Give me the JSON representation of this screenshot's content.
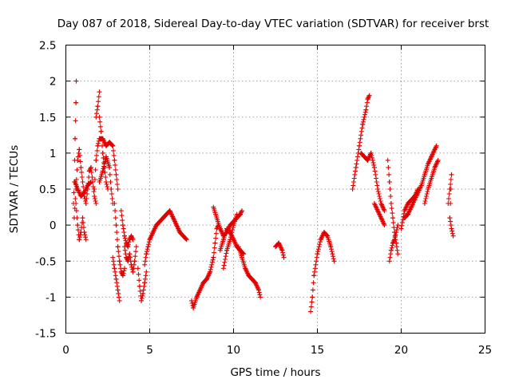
{
  "chart_data": {
    "type": "scatter",
    "title": "Day 087 of 2018, Sidereal Day-to-day VTEC variation (SDTVAR) for receiver brst",
    "xlabel": "GPS time / hours",
    "ylabel": "SDTVAR / TECUs",
    "xlim": [
      0,
      25
    ],
    "ylim": [
      -1.5,
      2.5
    ],
    "xticks": [
      0,
      5,
      10,
      15,
      20,
      25
    ],
    "xtick_labels": [
      "0",
      "5",
      "10",
      "15",
      "20",
      "25"
    ],
    "yticks": [
      -1.5,
      -1,
      -0.5,
      0,
      0.5,
      1,
      1.5,
      2,
      2.5
    ],
    "ytick_labels": [
      "-1.5",
      "-1",
      "-0.5",
      "0",
      "0.5",
      "1",
      "1.5",
      "2",
      "2.5"
    ],
    "grid": true,
    "marker": "+",
    "color": "#e00000",
    "arcs": [
      {
        "name": "arc-a",
        "points": [
          [
            0.45,
            0.3
          ],
          [
            0.5,
            0.6
          ],
          [
            0.55,
            1.2
          ],
          [
            0.6,
            1.7
          ],
          [
            0.62,
            2.0
          ]
        ]
      },
      {
        "name": "arc-b",
        "points": [
          [
            0.5,
            0.1
          ],
          [
            0.6,
            0.5
          ],
          [
            0.7,
            0.9
          ],
          [
            0.8,
            1.05
          ],
          [
            0.9,
            0.8
          ],
          [
            1.0,
            0.6
          ],
          [
            1.1,
            0.4
          ],
          [
            1.2,
            0.3
          ],
          [
            1.3,
            0.5
          ],
          [
            1.4,
            0.75
          ],
          [
            1.5,
            0.8
          ],
          [
            1.6,
            0.6
          ],
          [
            1.7,
            0.4
          ],
          [
            1.8,
            0.3
          ]
        ]
      },
      {
        "name": "arc-c",
        "points": [
          [
            0.6,
            0.3
          ],
          [
            0.7,
            0.0
          ],
          [
            0.8,
            -0.2
          ],
          [
            0.9,
            -0.1
          ],
          [
            1.0,
            0.1
          ],
          [
            1.1,
            -0.1
          ],
          [
            1.2,
            -0.2
          ]
        ]
      },
      {
        "name": "arc-d",
        "points": [
          [
            0.55,
            0.6
          ],
          [
            0.7,
            0.5
          ],
          [
            0.9,
            0.4
          ],
          [
            1.1,
            0.45
          ],
          [
            1.3,
            0.55
          ],
          [
            1.5,
            0.6
          ]
        ]
      },
      {
        "name": "arc-e",
        "points": [
          [
            1.7,
            0.5
          ],
          [
            1.8,
            0.9
          ],
          [
            1.9,
            1.1
          ],
          [
            2.0,
            1.2
          ],
          [
            2.2,
            1.2
          ],
          [
            2.4,
            1.1
          ],
          [
            2.6,
            1.15
          ],
          [
            2.8,
            1.1
          ],
          [
            2.9,
            0.9
          ],
          [
            3.0,
            0.7
          ],
          [
            3.1,
            0.5
          ]
        ]
      },
      {
        "name": "arc-f",
        "points": [
          [
            1.8,
            1.5
          ],
          [
            1.9,
            1.65
          ],
          [
            2.0,
            1.85
          ]
        ]
      },
      {
        "name": "arc-g",
        "points": [
          [
            2.0,
            1.5
          ],
          [
            2.1,
            1.3
          ],
          [
            2.2,
            1.0
          ],
          [
            2.3,
            0.8
          ],
          [
            2.4,
            0.6
          ],
          [
            2.5,
            0.5
          ]
        ]
      },
      {
        "name": "arc-h",
        "points": [
          [
            2.0,
            0.6
          ],
          [
            2.2,
            0.75
          ],
          [
            2.4,
            0.95
          ],
          [
            2.6,
            0.8
          ],
          [
            2.7,
            0.5
          ],
          [
            2.8,
            0.3
          ]
        ]
      },
      {
        "name": "arc-i",
        "points": [
          [
            2.8,
            -0.45
          ],
          [
            2.9,
            -0.6
          ],
          [
            3.0,
            -0.75
          ],
          [
            3.1,
            -0.9
          ],
          [
            3.2,
            -1.05
          ]
        ]
      },
      {
        "name": "arc-j",
        "points": [
          [
            2.9,
            0.3
          ],
          [
            3.0,
            0.0
          ],
          [
            3.1,
            -0.3
          ],
          [
            3.2,
            -0.5
          ],
          [
            3.3,
            -0.65
          ],
          [
            3.4,
            -0.7
          ],
          [
            3.5,
            -0.6
          ]
        ]
      },
      {
        "name": "arc-k",
        "points": [
          [
            3.3,
            0.2
          ],
          [
            3.4,
            0.0
          ],
          [
            3.5,
            -0.15
          ],
          [
            3.6,
            -0.25
          ],
          [
            3.7,
            -0.3
          ],
          [
            3.8,
            -0.2
          ],
          [
            3.9,
            -0.15
          ],
          [
            4.0,
            -0.2
          ]
        ]
      },
      {
        "name": "arc-l",
        "points": [
          [
            3.5,
            -0.3
          ],
          [
            3.6,
            -0.45
          ],
          [
            3.7,
            -0.5
          ],
          [
            3.8,
            -0.4
          ],
          [
            3.9,
            -0.55
          ],
          [
            4.0,
            -0.65
          ],
          [
            4.1,
            -0.5
          ],
          [
            4.2,
            -0.3
          ]
        ]
      },
      {
        "name": "arc-m",
        "points": [
          [
            4.3,
            -0.6
          ],
          [
            4.4,
            -0.85
          ],
          [
            4.5,
            -1.05
          ],
          [
            4.6,
            -0.95
          ],
          [
            4.7,
            -0.8
          ],
          [
            4.8,
            -0.65
          ]
        ]
      },
      {
        "name": "arc-n",
        "points": [
          [
            4.7,
            -0.55
          ],
          [
            4.8,
            -0.4
          ],
          [
            4.9,
            -0.3
          ],
          [
            5.0,
            -0.2
          ],
          [
            5.2,
            -0.1
          ],
          [
            5.4,
            0.0
          ],
          [
            5.6,
            0.05
          ],
          [
            5.8,
            0.1
          ],
          [
            6.0,
            0.15
          ],
          [
            6.2,
            0.2
          ],
          [
            6.4,
            0.1
          ],
          [
            6.6,
            0.0
          ],
          [
            6.8,
            -0.1
          ],
          [
            7.0,
            -0.15
          ],
          [
            7.2,
            -0.2
          ]
        ]
      },
      {
        "name": "arc-o",
        "points": [
          [
            7.5,
            -1.05
          ],
          [
            7.6,
            -1.15
          ],
          [
            7.8,
            -1.0
          ],
          [
            8.0,
            -0.9
          ],
          [
            8.2,
            -0.8
          ],
          [
            8.4,
            -0.75
          ],
          [
            8.6,
            -0.65
          ],
          [
            8.8,
            -0.45
          ],
          [
            8.9,
            -0.25
          ],
          [
            9.0,
            -0.05
          ],
          [
            9.1,
            0.0
          ]
        ]
      },
      {
        "name": "arc-p",
        "points": [
          [
            8.8,
            0.25
          ],
          [
            9.0,
            0.1
          ],
          [
            9.2,
            -0.05
          ],
          [
            9.4,
            -0.15
          ],
          [
            9.6,
            -0.1
          ],
          [
            9.8,
            0.0
          ],
          [
            10.0,
            0.05
          ],
          [
            10.2,
            0.1
          ],
          [
            10.4,
            0.15
          ],
          [
            10.5,
            0.2
          ]
        ]
      },
      {
        "name": "arc-q",
        "points": [
          [
            9.2,
            -0.35
          ],
          [
            9.4,
            -0.2
          ],
          [
            9.6,
            -0.05
          ],
          [
            9.8,
            -0.1
          ],
          [
            10.0,
            -0.2
          ],
          [
            10.2,
            -0.3
          ],
          [
            10.4,
            -0.35
          ],
          [
            10.6,
            -0.4
          ]
        ]
      },
      {
        "name": "arc-r",
        "points": [
          [
            9.4,
            -0.6
          ],
          [
            9.6,
            -0.35
          ],
          [
            9.8,
            -0.2
          ],
          [
            10.0,
            0.0
          ],
          [
            10.2,
            0.15
          ]
        ]
      },
      {
        "name": "arc-s",
        "points": [
          [
            10.3,
            -0.3
          ],
          [
            10.5,
            -0.45
          ],
          [
            10.7,
            -0.6
          ],
          [
            10.9,
            -0.7
          ],
          [
            11.1,
            -0.75
          ],
          [
            11.3,
            -0.8
          ],
          [
            11.5,
            -0.9
          ],
          [
            11.6,
            -1.0
          ]
        ]
      },
      {
        "name": "arc-t",
        "points": [
          [
            12.5,
            -0.3
          ],
          [
            12.7,
            -0.25
          ],
          [
            12.9,
            -0.35
          ],
          [
            13.0,
            -0.45
          ]
        ]
      },
      {
        "name": "arc-u",
        "points": [
          [
            14.6,
            -1.2
          ],
          [
            14.7,
            -1.0
          ],
          [
            14.8,
            -0.7
          ],
          [
            15.0,
            -0.4
          ],
          [
            15.2,
            -0.2
          ],
          [
            15.4,
            -0.1
          ],
          [
            15.6,
            -0.15
          ],
          [
            15.8,
            -0.3
          ],
          [
            16.0,
            -0.5
          ]
        ]
      },
      {
        "name": "arc-v",
        "points": [
          [
            17.1,
            0.5
          ],
          [
            17.3,
            0.8
          ],
          [
            17.5,
            1.1
          ],
          [
            17.7,
            1.4
          ],
          [
            17.9,
            1.6
          ],
          [
            18.0,
            1.75
          ],
          [
            18.1,
            1.8
          ]
        ]
      },
      {
        "name": "arc-w",
        "points": [
          [
            17.6,
            1.0
          ],
          [
            17.8,
            0.95
          ],
          [
            18.0,
            0.9
          ],
          [
            18.2,
            1.0
          ],
          [
            18.4,
            0.8
          ],
          [
            18.6,
            0.5
          ],
          [
            18.8,
            0.3
          ],
          [
            19.0,
            0.2
          ]
        ]
      },
      {
        "name": "arc-x",
        "points": [
          [
            18.4,
            0.3
          ],
          [
            18.6,
            0.2
          ],
          [
            18.8,
            0.1
          ],
          [
            19.0,
            0.0
          ]
        ]
      },
      {
        "name": "arc-y",
        "points": [
          [
            19.2,
            0.9
          ],
          [
            19.3,
            0.6
          ],
          [
            19.4,
            0.3
          ],
          [
            19.5,
            0.1
          ],
          [
            19.6,
            -0.1
          ],
          [
            19.7,
            -0.25
          ],
          [
            19.8,
            -0.4
          ]
        ]
      },
      {
        "name": "arc-z",
        "points": [
          [
            19.3,
            -0.5
          ],
          [
            19.4,
            -0.35
          ],
          [
            19.5,
            -0.25
          ],
          [
            19.6,
            -0.2
          ],
          [
            19.7,
            -0.1
          ],
          [
            19.8,
            0.0
          ]
        ]
      },
      {
        "name": "arc-aa",
        "points": [
          [
            20.0,
            -0.05
          ],
          [
            20.2,
            0.2
          ],
          [
            20.4,
            0.3
          ],
          [
            20.6,
            0.35
          ],
          [
            20.8,
            0.4
          ],
          [
            21.0,
            0.5
          ]
        ]
      },
      {
        "name": "arc-ab",
        "points": [
          [
            20.2,
            0.1
          ],
          [
            20.4,
            0.15
          ],
          [
            20.6,
            0.25
          ],
          [
            20.8,
            0.35
          ],
          [
            21.0,
            0.45
          ],
          [
            21.2,
            0.55
          ],
          [
            21.4,
            0.7
          ],
          [
            21.6,
            0.85
          ],
          [
            21.8,
            0.95
          ],
          [
            22.0,
            1.05
          ],
          [
            22.1,
            1.1
          ]
        ]
      },
      {
        "name": "arc-ac",
        "points": [
          [
            21.4,
            0.3
          ],
          [
            21.6,
            0.5
          ],
          [
            21.8,
            0.65
          ],
          [
            22.0,
            0.8
          ],
          [
            22.2,
            0.9
          ]
        ]
      },
      {
        "name": "arc-ad",
        "points": [
          [
            22.8,
            0.3
          ],
          [
            22.9,
            0.5
          ],
          [
            23.0,
            0.7
          ],
          [
            22.9,
            0.1
          ],
          [
            23.0,
            -0.05
          ],
          [
            23.1,
            -0.15
          ]
        ]
      }
    ]
  }
}
